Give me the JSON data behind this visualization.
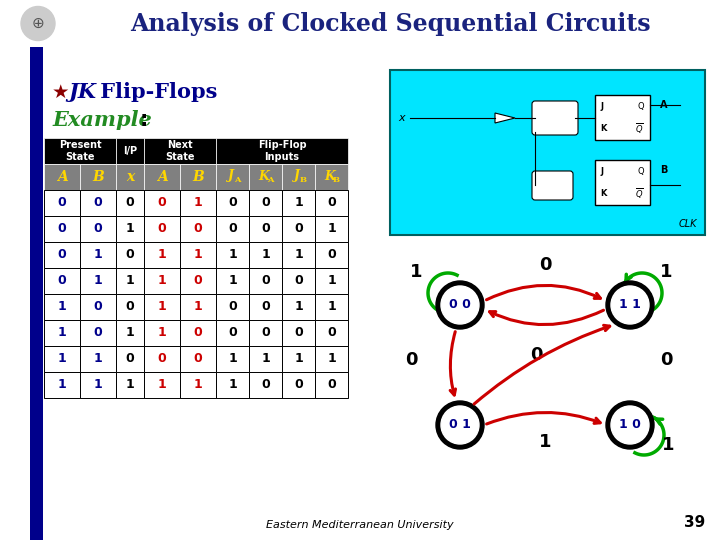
{
  "title": "Analysis of Clocked Sequential Circuits",
  "title_color": "#1a237e",
  "title_bg": "#FFA500",
  "slide_bg": "#FFFFFF",
  "bullet_star_color": "#8B0000",
  "jk_color": "#00008B",
  "example_color": "#228B22",
  "left_bar_color": "#00008B",
  "table_header_bg": "#000000",
  "table_header_fg": "#FFFFFF",
  "table_subheader_bg": "#808080",
  "table_subheader_fg": "#FFD700",
  "table_data_rows": [
    [
      0,
      0,
      0,
      0,
      1,
      0,
      0,
      1,
      0
    ],
    [
      0,
      0,
      1,
      0,
      0,
      0,
      0,
      0,
      1
    ],
    [
      0,
      1,
      0,
      1,
      1,
      1,
      1,
      1,
      0
    ],
    [
      0,
      1,
      1,
      1,
      0,
      1,
      0,
      0,
      1
    ],
    [
      1,
      0,
      0,
      1,
      1,
      0,
      0,
      1,
      1
    ],
    [
      1,
      0,
      1,
      1,
      0,
      0,
      0,
      0,
      0
    ],
    [
      1,
      1,
      0,
      0,
      0,
      1,
      1,
      1,
      1
    ],
    [
      1,
      1,
      1,
      1,
      1,
      1,
      0,
      0,
      0
    ]
  ],
  "col_AB_color": "#00008B",
  "col_nextAB_red": "#CC0000",
  "circuit_bg": "#00E5FF",
  "green_arrow": "#00AA00",
  "red_arrow": "#CC0000",
  "footer_text": "Eastern Mediterranean University",
  "page_num": "39"
}
